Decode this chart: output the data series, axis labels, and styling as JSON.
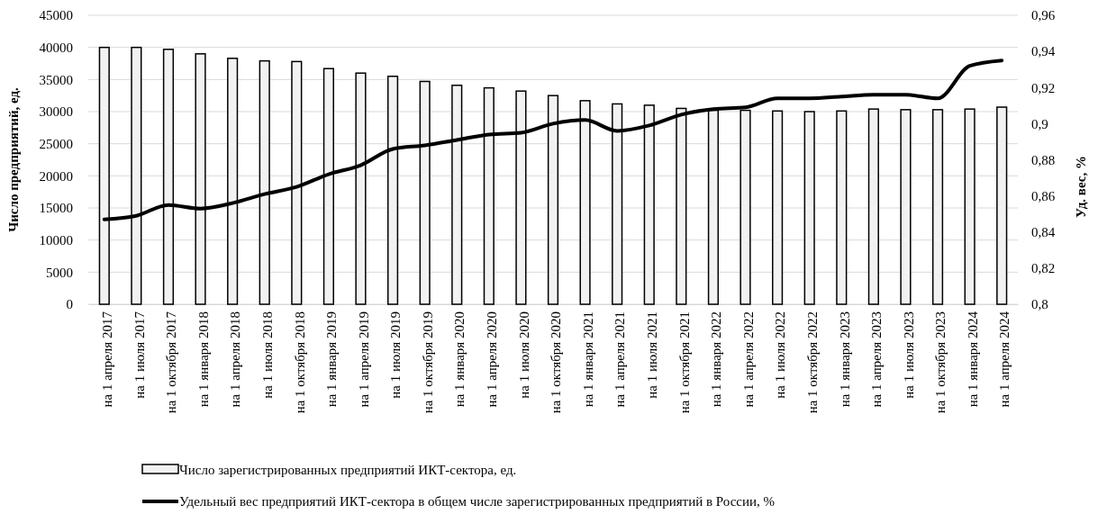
{
  "chart_data": {
    "type": "bar",
    "ylabel": "Число предприятий, ед.",
    "y2label": "Уд. вес, %",
    "categories": [
      "на 1 апреля 2017",
      "на 1 июля 2017",
      "на 1 октября 2017",
      "на 1 января 2018",
      "на 1 апреля 2018",
      "на 1 июля 2018",
      "на 1 октября 2018",
      "на 1 января 2019",
      "на 1 апреля 2019",
      "на 1 июля 2019",
      "на 1 октября 2019",
      "на 1 января 2020",
      "на 1 апреля 2020",
      "на 1 июля 2020",
      "на 1 октября 2020",
      "на 1 января 2021",
      "на 1 апреля 2021",
      "на 1 июля 2021",
      "на 1 октября 2021",
      "на 1 января 2022",
      "на 1 апреля 2022",
      "на 1 июля 2022",
      "на 1 октября 2022",
      "на 1 января 2023",
      "на 1 апреля 2023",
      "на 1 июля 2023",
      "на 1 октября 2023",
      "на 1 января 2024",
      "на 1 апреля 2024"
    ],
    "series": [
      {
        "name": "Число зарегистрированных  предприятий ИКТ-сектора, ед.",
        "color": "#f2f2f2",
        "values": [
          40000,
          40000,
          39700,
          39000,
          38300,
          37900,
          37800,
          36700,
          36000,
          35500,
          34700,
          34100,
          33700,
          33200,
          32500,
          31700,
          31200,
          31000,
          30500,
          30200,
          30200,
          30100,
          30000,
          30100,
          30400,
          30300,
          30300,
          30400,
          30700
        ]
      },
      {
        "name": "Удельный вес предприятий ИКТ-сектора в общем числе зарегистрированных  предприятий в России, %",
        "type": "line",
        "axis": "y2",
        "color": "#000000",
        "values": [
          0.847,
          0.849,
          0.855,
          0.853,
          0.856,
          0.861,
          0.865,
          0.872,
          0.877,
          0.886,
          0.888,
          0.891,
          0.894,
          0.895,
          0.9,
          0.902,
          0.896,
          0.899,
          0.905,
          0.908,
          0.909,
          0.914,
          0.914,
          0.915,
          0.916,
          0.916,
          0.914,
          0.932,
          0.935
        ]
      }
    ],
    "ylim": [
      0,
      45000
    ],
    "yticks": [
      0,
      5000,
      10000,
      15000,
      20000,
      25000,
      30000,
      35000,
      40000,
      45000
    ],
    "y2lim": [
      0.8,
      0.96
    ],
    "y2ticks": [
      {
        "value": 0.8,
        "label": "0,8"
      },
      {
        "value": 0.82,
        "label": "0,82"
      },
      {
        "value": 0.84,
        "label": "0,84"
      },
      {
        "value": 0.86,
        "label": "0,86"
      },
      {
        "value": 0.88,
        "label": "0,88"
      },
      {
        "value": 0.9,
        "label": "0,9"
      },
      {
        "value": 0.92,
        "label": "0,92"
      },
      {
        "value": 0.94,
        "label": "0,94"
      },
      {
        "value": 0.96,
        "label": "0,96"
      }
    ],
    "grid": "y",
    "legend": "bottom",
    "marker": "none",
    "line_style": "solid"
  }
}
